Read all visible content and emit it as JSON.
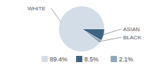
{
  "chart_data": {
    "type": "pie",
    "categories": [
      "WHITE",
      "ASIAN",
      "BLACK"
    ],
    "values": [
      89.4,
      8.5,
      2.1
    ],
    "value_labels": [
      "89.4%",
      "8.5%",
      "2.1%"
    ],
    "colors": [
      "#d3dde7",
      "#3d6485",
      "#8ea7bd"
    ],
    "legend": "bottom"
  }
}
